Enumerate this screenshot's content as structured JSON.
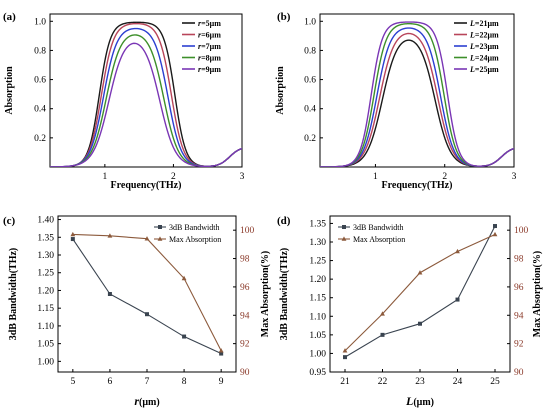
{
  "chart_data": [
    {
      "id": "a",
      "panel_label": "(a)",
      "type": "line",
      "xlabel": "Frequency(THz)",
      "ylabel": "Absorption",
      "xlim": [
        0.2,
        3
      ],
      "ylim": [
        0,
        1.05
      ],
      "x_ticks": [
        "1",
        "2",
        "3"
      ],
      "x_tick_values": [
        1,
        2,
        3
      ],
      "y_ticks": [
        "0.2",
        "0.4",
        "0.6",
        "0.8",
        "1.0"
      ],
      "y_tick_values": [
        0.2,
        0.4,
        0.6,
        0.8,
        1.0
      ],
      "legend_position": "top-right",
      "series": [
        {
          "name": "r=5μm",
          "legend_parts": [
            "r",
            "=5μm"
          ],
          "color": "#1a1a1a",
          "params": {
            "f1": 0.92,
            "f2": 2.02,
            "w": 0.19,
            "peak": 0.995
          }
        },
        {
          "name": "r=6μm",
          "legend_parts": [
            "r",
            "=6μm"
          ],
          "color": "#b8455a",
          "params": {
            "f1": 0.95,
            "f2": 1.97,
            "w": 0.21,
            "peak": 0.99
          }
        },
        {
          "name": "r=7μm",
          "legend_parts": [
            "r",
            "=7μm"
          ],
          "color": "#2b3fd1",
          "params": {
            "f1": 0.98,
            "f2": 1.92,
            "w": 0.23,
            "peak": 0.965
          }
        },
        {
          "name": "r=8μm",
          "legend_parts": [
            "r",
            "=8μm"
          ],
          "color": "#3d8f2a",
          "params": {
            "f1": 1.02,
            "f2": 1.86,
            "w": 0.25,
            "peak": 0.94
          }
        },
        {
          "name": "r=9μm",
          "legend_parts": [
            "r",
            "=9μm"
          ],
          "color": "#7a36b5",
          "params": {
            "f1": 1.06,
            "f2": 1.8,
            "w": 0.27,
            "peak": 0.915
          }
        }
      ]
    },
    {
      "id": "b",
      "panel_label": "(b)",
      "type": "line",
      "xlabel": "Frequency(THz)",
      "ylabel": "Absorption",
      "xlim": [
        0.2,
        3
      ],
      "ylim": [
        0,
        1.05
      ],
      "x_ticks": [
        "1",
        "2",
        "3"
      ],
      "x_tick_values": [
        1,
        2,
        3
      ],
      "y_ticks": [
        "0.2",
        "0.4",
        "0.6",
        "0.8",
        "1.0"
      ],
      "y_tick_values": [
        0.2,
        0.4,
        0.6,
        0.8,
        1.0
      ],
      "legend_position": "top-right",
      "series": [
        {
          "name": "L=21μm",
          "legend_parts": [
            "L",
            "=21μm"
          ],
          "color": "#1a1a1a",
          "params": {
            "f1": 1.1,
            "f2": 1.86,
            "w": 0.26,
            "peak": 0.925
          }
        },
        {
          "name": "L=22μm",
          "legend_parts": [
            "L",
            "=22μm"
          ],
          "color": "#b8455a",
          "params": {
            "f1": 1.06,
            "f2": 1.9,
            "w": 0.25,
            "peak": 0.95
          }
        },
        {
          "name": "L=23μm",
          "legend_parts": [
            "L",
            "=23μm"
          ],
          "color": "#2b3fd1",
          "params": {
            "f1": 1.02,
            "f2": 1.94,
            "w": 0.23,
            "peak": 0.97
          }
        },
        {
          "name": "L=24μm",
          "legend_parts": [
            "L",
            "=24μm"
          ],
          "color": "#3d8f2a",
          "params": {
            "f1": 0.98,
            "f2": 1.99,
            "w": 0.21,
            "peak": 0.99
          }
        },
        {
          "name": "L=25μm",
          "legend_parts": [
            "L",
            "=25μm"
          ],
          "color": "#7a36b5",
          "params": {
            "f1": 0.94,
            "f2": 2.04,
            "w": 0.19,
            "peak": 0.997
          }
        }
      ]
    },
    {
      "id": "c",
      "panel_label": "(c)",
      "type": "line",
      "xlabel_parts": [
        "r",
        "(μm)"
      ],
      "xlabel": "r(μm)",
      "ylabel": "3dB Bandwidth(THz)",
      "y2label": "Max Absorption(%)",
      "x": [
        5,
        6,
        7,
        8,
        9
      ],
      "xlim": [
        4.6,
        9.4
      ],
      "ylim": [
        0.97,
        1.41
      ],
      "y2lim": [
        90,
        101
      ],
      "x_ticks": [
        "5",
        "6",
        "7",
        "8",
        "9"
      ],
      "y_ticks": [
        "1.00",
        "1.05",
        "1.10",
        "1.15",
        "1.20",
        "1.25",
        "1.30",
        "1.35",
        "1.40"
      ],
      "y_tick_values": [
        1.0,
        1.05,
        1.1,
        1.15,
        1.2,
        1.25,
        1.3,
        1.35,
        1.4
      ],
      "y2_ticks": [
        "90",
        "92",
        "94",
        "96",
        "98",
        "100"
      ],
      "y2_tick_values": [
        90,
        92,
        94,
        96,
        98,
        100
      ],
      "legend_position": "top-right",
      "series": [
        {
          "name": "3dB Bandwidth",
          "axis": "left",
          "color": "#3a4450",
          "marker": "square",
          "values": [
            1.345,
            1.19,
            1.133,
            1.07,
            1.022
          ]
        },
        {
          "name": "Max Absorption",
          "axis": "right",
          "color": "#8c5a3c",
          "marker": "triangle",
          "values": [
            99.7,
            99.6,
            99.4,
            96.6,
            91.5
          ]
        }
      ]
    },
    {
      "id": "d",
      "panel_label": "(d)",
      "type": "line",
      "xlabel_parts": [
        "L",
        "(μm)"
      ],
      "xlabel": "L(μm)",
      "ylabel": "3dB Bandwidth(THz)",
      "y2label": "Max Absorption(%)",
      "x": [
        21,
        22,
        23,
        24,
        25
      ],
      "xlim": [
        20.6,
        25.4
      ],
      "ylim": [
        0.95,
        1.37
      ],
      "y2lim": [
        90,
        101
      ],
      "x_ticks": [
        "21",
        "22",
        "23",
        "24",
        "25"
      ],
      "y_ticks": [
        "0.95",
        "1.00",
        "1.05",
        "1.10",
        "1.15",
        "1.20",
        "1.25",
        "1.30",
        "1.35"
      ],
      "y_tick_values": [
        0.95,
        1.0,
        1.05,
        1.1,
        1.15,
        1.2,
        1.25,
        1.3,
        1.35
      ],
      "y2_ticks": [
        "90",
        "92",
        "94",
        "96",
        "98",
        "100"
      ],
      "y2_tick_values": [
        90,
        92,
        94,
        96,
        98,
        100
      ],
      "legend_position": "top-left",
      "series": [
        {
          "name": "3dB Bandwidth",
          "axis": "left",
          "color": "#3a4450",
          "marker": "square",
          "values": [
            0.99,
            1.05,
            1.08,
            1.145,
            1.343
          ]
        },
        {
          "name": "Max Absorption",
          "axis": "right",
          "color": "#8c5a3c",
          "marker": "triangle",
          "values": [
            91.5,
            94.1,
            97.0,
            98.5,
            99.7
          ]
        }
      ]
    }
  ]
}
